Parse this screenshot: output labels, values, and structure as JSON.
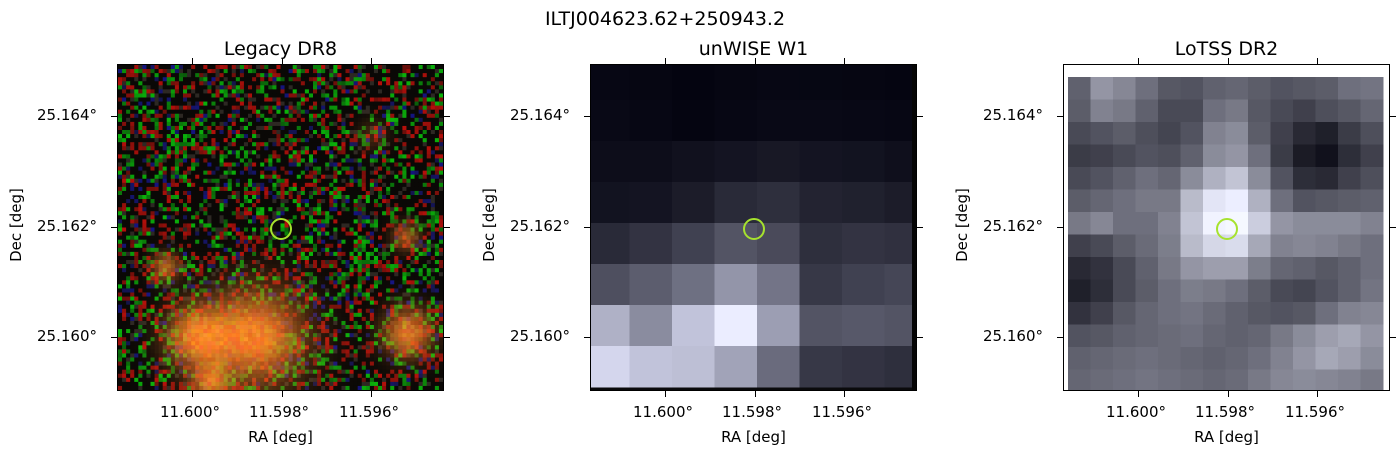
{
  "figure_title": "ILTJ004623.62+250943.2",
  "panels": [
    {
      "title": "Legacy DR8",
      "xlabel": "RA [deg]",
      "ylabel": "Dec [deg]",
      "xticks": [
        "11.600°",
        "11.598°",
        "11.596°"
      ],
      "yticks": [
        "25.164°",
        "25.162°",
        "25.160°"
      ],
      "image": "rgb-noise-with-orange-galaxies",
      "marker": "circle",
      "marker_color": "#a6e22e"
    },
    {
      "title": "unWISE W1",
      "xlabel": "RA [deg]",
      "ylabel": "Dec [deg]",
      "xticks": [
        "11.600°",
        "11.598°",
        "11.596°"
      ],
      "yticks": [
        "25.164°",
        "25.162°",
        "25.160°"
      ],
      "image": "grayscale-coarse-pixels",
      "marker": "circle",
      "marker_color": "#a6e22e"
    },
    {
      "title": "LoTSS DR2",
      "xlabel": "RA [deg]",
      "ylabel": "Dec [deg]",
      "xticks": [
        "11.600°",
        "11.598°",
        "11.596°"
      ],
      "yticks": [
        "25.164°",
        "25.162°",
        "25.160°"
      ],
      "image": "grayscale-fine-pixels",
      "marker": "circle",
      "marker_color": "#a6e22e"
    }
  ]
}
